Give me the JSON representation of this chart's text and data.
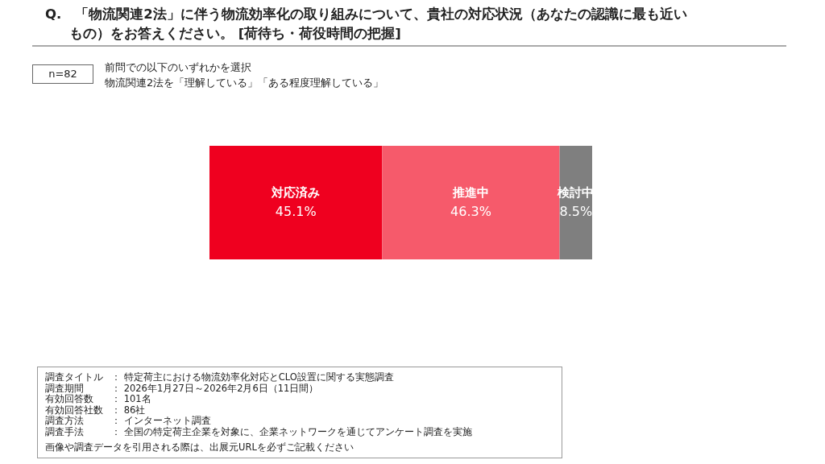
{
  "chart_data": {
    "type": "bar",
    "orientation": "horizontal",
    "stacked": true,
    "title": "Q.　「物流関連2法」に伴う物流効率化の取り組みについて、貴社の対応状況（あなたの認識に最も近いもの）をお答えください。 [荷待ち・荷役時間の把握]",
    "subtitle": "前問での以下のいずれかを選択",
    "categories": [
      null
    ],
    "series": [
      {
        "name": "対応済み",
        "color": "#ef001f",
        "values": [
          45.1
        ],
        "value_labels": [
          "45.1%"
        ]
      },
      {
        "name": "推進中",
        "color": "#f65a6b",
        "values": [
          46.3
        ],
        "value_labels": [
          "46.3%"
        ]
      },
      {
        "name": "検討中",
        "color": "#7f7f7f",
        "values": [
          8.5
        ],
        "value_labels": [
          "8.5%"
        ]
      }
    ],
    "annotations": [
      "n=82",
      "物流関連2法を「理解している」「ある程度理解している」",
      "調査タイトル",
      "： 特定荷主における物流効率化対応とCLO設置に関する実態調査",
      "調査期間",
      "： 2026年1月27日～2026年2月6日（11日間）",
      "有効回答数",
      "： 101名",
      "有効回答社数",
      "： 86社",
      "調査方法",
      "： インターネット調査",
      "調査手法",
      "： 全国の特定荷主企業を対象に、企業ネットワークを通じてアンケート調査を実施",
      "画像や調査データを引用される際は、出展元URLを必ずご記載ください"
    ]
  }
}
